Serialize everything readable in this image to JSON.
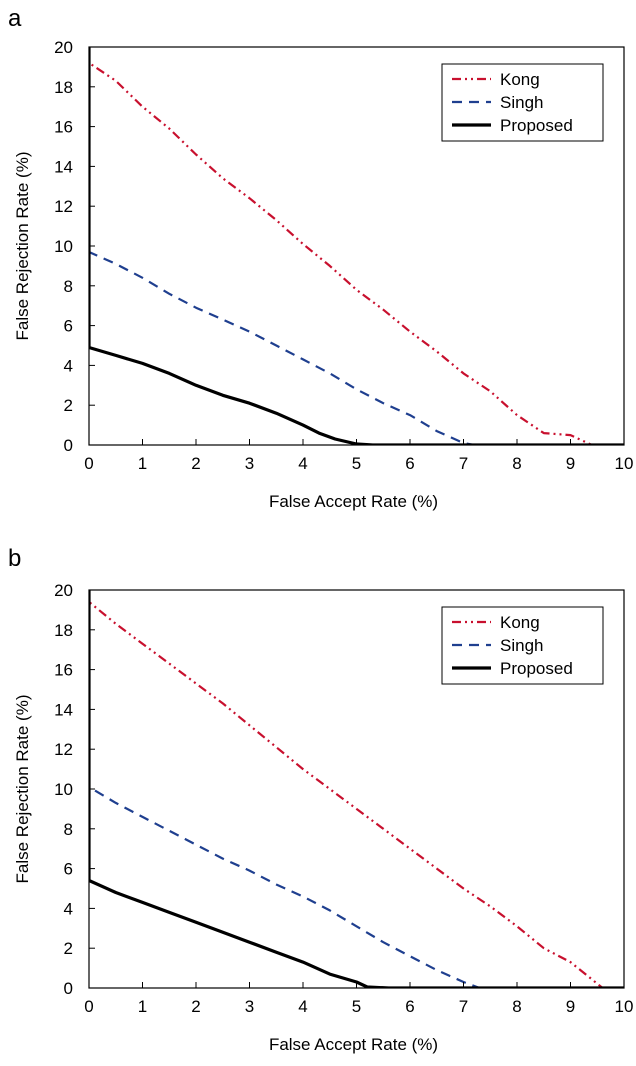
{
  "chart_data": [
    {
      "type": "line",
      "panel_label": "a",
      "xlabel": "False Accept Rate (%)",
      "ylabel": "False Rejection Rate (%)",
      "xlim": [
        0,
        10
      ],
      "ylim": [
        0,
        20
      ],
      "xticks": [
        "0",
        "1",
        "2",
        "3",
        "4",
        "5",
        "6",
        "7",
        "8",
        "9",
        "10"
      ],
      "yticks": [
        "0",
        "2",
        "4",
        "6",
        "8",
        "10",
        "12",
        "14",
        "16",
        "18",
        "20"
      ],
      "grid": false,
      "legend_position": "top-right",
      "series": [
        {
          "name": "Kong",
          "color": "#c8102e",
          "style": "dash-dot-dot",
          "x": [
            0,
            0,
            0.5,
            1,
            1.5,
            2,
            2.5,
            3,
            3.5,
            4,
            4.5,
            5,
            5.5,
            6,
            6.5,
            7,
            7.5,
            8,
            8.5,
            9,
            9.4,
            10
          ],
          "y": [
            20,
            19.2,
            18.3,
            17.0,
            15.9,
            14.6,
            13.4,
            12.4,
            11.3,
            10.1,
            9.0,
            7.8,
            6.8,
            5.7,
            4.7,
            3.6,
            2.7,
            1.5,
            0.6,
            0.5,
            0,
            0
          ]
        },
        {
          "name": "Singh",
          "color": "#1f3f8f",
          "style": "dashed",
          "x": [
            0,
            0,
            0.5,
            1,
            1.5,
            2,
            2.5,
            3,
            3.5,
            4,
            4.5,
            5,
            5.5,
            6,
            6.5,
            7,
            7.2,
            10
          ],
          "y": [
            20,
            9.7,
            9.1,
            8.4,
            7.6,
            6.9,
            6.3,
            5.7,
            5.0,
            4.3,
            3.6,
            2.8,
            2.1,
            1.5,
            0.7,
            0.1,
            0,
            0
          ]
        },
        {
          "name": "Proposed",
          "color": "#000000",
          "style": "solid",
          "x": [
            0,
            0,
            0.5,
            1,
            1.5,
            2,
            2.5,
            3,
            3.5,
            4,
            4.3,
            4.6,
            5,
            5.3,
            10
          ],
          "y": [
            20,
            4.9,
            4.5,
            4.1,
            3.6,
            3.0,
            2.5,
            2.1,
            1.6,
            1.0,
            0.6,
            0.3,
            0.05,
            0,
            0
          ]
        }
      ]
    },
    {
      "type": "line",
      "panel_label": "b",
      "xlabel": "False Accept Rate (%)",
      "ylabel": "False Rejection Rate (%)",
      "xlim": [
        0,
        10
      ],
      "ylim": [
        0,
        20
      ],
      "xticks": [
        "0",
        "1",
        "2",
        "3",
        "4",
        "5",
        "6",
        "7",
        "8",
        "9",
        "10"
      ],
      "yticks": [
        "0",
        "2",
        "4",
        "6",
        "8",
        "10",
        "12",
        "14",
        "16",
        "18",
        "20"
      ],
      "grid": false,
      "legend_position": "top-right",
      "series": [
        {
          "name": "Kong",
          "color": "#c8102e",
          "style": "dash-dot-dot",
          "x": [
            0,
            0,
            0.5,
            1,
            1.5,
            2,
            2.5,
            3,
            3.5,
            4,
            4.5,
            5,
            5.5,
            6,
            6.5,
            7,
            7.5,
            8,
            8.5,
            9,
            9.6,
            10
          ],
          "y": [
            20,
            19.4,
            18.3,
            17.3,
            16.3,
            15.3,
            14.3,
            13.2,
            12.1,
            11.0,
            10.0,
            9.0,
            8.0,
            7.0,
            6.0,
            5.0,
            4.1,
            3.1,
            2.0,
            1.3,
            0,
            0
          ]
        },
        {
          "name": "Singh",
          "color": "#1f3f8f",
          "style": "dashed",
          "x": [
            0,
            0,
            0.5,
            1,
            1.5,
            2,
            2.5,
            3,
            3.5,
            4,
            4.5,
            5,
            5.5,
            6,
            6.5,
            7,
            7.3,
            10
          ],
          "y": [
            20,
            10.1,
            9.3,
            8.6,
            7.9,
            7.2,
            6.5,
            5.9,
            5.2,
            4.6,
            3.9,
            3.1,
            2.3,
            1.6,
            0.9,
            0.3,
            0,
            0
          ]
        },
        {
          "name": "Proposed",
          "color": "#000000",
          "style": "solid",
          "x": [
            0,
            0,
            0.5,
            1,
            1.5,
            2,
            2.5,
            3,
            3.5,
            4,
            4.5,
            5,
            5.2,
            5.6,
            10
          ],
          "y": [
            20,
            5.4,
            4.8,
            4.3,
            3.8,
            3.3,
            2.8,
            2.3,
            1.8,
            1.3,
            0.7,
            0.3,
            0.05,
            0,
            0
          ]
        }
      ]
    }
  ]
}
